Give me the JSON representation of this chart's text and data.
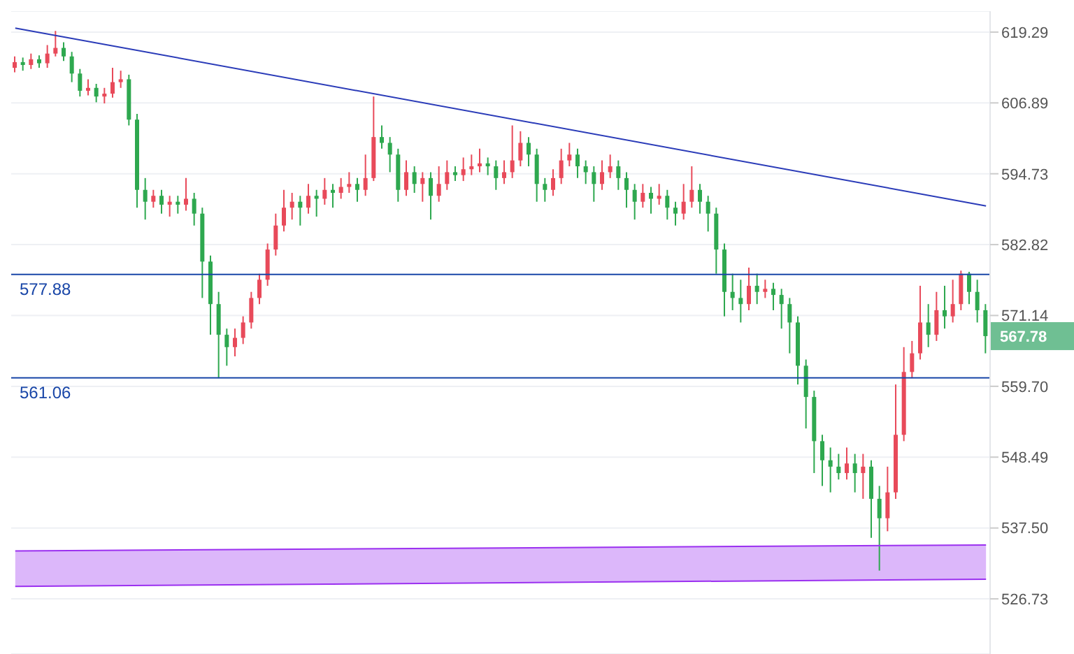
{
  "chart_data": {
    "type": "candlestick",
    "log": true,
    "grid": "y",
    "tick_labels": "y",
    "colors": [
      "#e84a5a",
      "#2ea84f",
      "#e84a5a",
      "#2ea84f",
      "#e84a5a",
      "#e84a5a",
      "#2ea84f",
      "#2ea84f",
      "#2ea84f",
      "#e84a5a",
      "#2ea84f",
      "#e84a5a",
      "#e84a5a",
      "#e84a5a",
      "#2ea84f",
      "#2ea84f",
      "#2ea84f",
      "#e84a5a",
      "#2ea84f",
      "#e84a5a",
      "#2ea84f",
      "#e84a5a",
      "#2ea84f",
      "#2ea84f",
      "#2ea84f",
      "#2ea84f",
      "#2ea84f",
      "#e84a5a",
      "#e84a5a",
      "#e84a5a",
      "#e84a5a",
      "#e84a5a",
      "#e84a5a",
      "#e84a5a",
      "#e84a5a",
      "#2ea84f",
      "#e84a5a",
      "#2ea84f",
      "#e84a5a",
      "#2ea84f",
      "#e84a5a",
      "#e84a5a",
      "#2ea84f",
      "#e84a5a",
      "#e84a5a",
      "#2ea84f",
      "#2ea84f",
      "#2ea84f",
      "#e84a5a",
      "#2ea84f",
      "#e84a5a",
      "#2ea84f",
      "#e84a5a",
      "#e84a5a",
      "#2ea84f",
      "#e84a5a",
      "#e84a5a",
      "#e84a5a",
      "#2ea84f",
      "#2ea84f",
      "#e84a5a",
      "#e84a5a",
      "#e84a5a",
      "#2ea84f",
      "#2ea84f",
      "#2ea84f",
      "#e84a5a",
      "#e84a5a",
      "#e84a5a",
      "#2ea84f",
      "#2ea84f",
      "#2ea84f",
      "#e84a5a",
      "#e84a5a",
      "#2ea84f",
      "#2ea84f",
      "#2ea84f",
      "#e84a5a",
      "#2ea84f",
      "#e84a5a",
      "#2ea84f",
      "#2ea84f",
      "#e84a5a",
      "#e84a5a",
      "#2ea84f",
      "#2ea84f",
      "#2ea84f",
      "#2ea84f",
      "#2ea84f",
      "#2ea84f",
      "#e84a5a",
      "#2ea84f",
      "#e84a5a",
      "#2ea84f",
      "#2ea84f",
      "#2ea84f",
      "#2ea84f",
      "#2ea84f",
      "#2ea84f",
      "#2ea84f",
      "#2ea84f",
      "#2ea84f",
      "#e84a5a",
      "#2ea84f",
      "#e84a5a",
      "#2ea84f",
      "#2ea84f",
      "#e84a5a",
      "#e84a5a",
      "#e84a5a",
      "#e84a5a",
      "#e84a5a",
      "#2ea84f",
      "#e84a5a",
      "#2ea84f",
      "#e84a5a",
      "#e84a5a",
      "#2ea84f",
      "#2ea84f",
      "#2ea84f"
    ],
    "ylim": [
      518.5,
      623
    ],
    "yticks": [
      {
        "value": 526.73,
        "label": "526.73"
      },
      {
        "value": 537.5,
        "label": "537.50"
      },
      {
        "value": 548.49,
        "label": "548.49"
      },
      {
        "value": 559.7,
        "label": "559.70"
      },
      {
        "value": 571.14,
        "label": "571.14"
      },
      {
        "value": 582.82,
        "label": "582.82"
      },
      {
        "value": 594.73,
        "label": "594.73"
      },
      {
        "value": 606.89,
        "label": "606.89"
      },
      {
        "value": 619.29,
        "label": "619.29"
      }
    ],
    "categories": [
      null,
      null,
      null,
      null,
      null,
      null,
      null,
      null,
      null,
      null,
      null,
      null,
      null,
      null,
      null,
      null,
      null,
      null,
      null,
      null,
      null,
      null,
      null,
      null,
      null,
      null,
      null,
      null,
      null,
      null,
      null,
      null,
      null,
      null,
      null,
      null,
      null,
      null,
      null,
      null,
      null,
      null,
      null,
      null,
      null,
      null,
      null,
      null,
      null,
      null,
      null,
      null,
      null,
      null,
      null,
      null,
      null,
      null,
      null,
      null,
      null,
      null,
      null,
      null,
      null,
      null,
      null,
      null,
      null,
      null,
      null,
      null,
      null,
      null,
      null,
      null,
      null,
      null,
      null,
      null,
      null,
      null,
      null,
      null,
      null,
      null,
      null,
      null,
      null,
      null,
      null,
      null,
      null,
      null,
      null,
      null,
      null,
      null,
      null,
      null,
      null,
      null,
      null,
      null,
      null,
      null,
      null,
      null,
      null,
      null,
      null,
      null,
      null,
      null,
      null,
      null,
      null,
      null,
      null,
      null
    ],
    "ohlc": [
      [
        613,
        615,
        612.2,
        614
      ],
      [
        614,
        614.8,
        612.5,
        613.5
      ],
      [
        613.5,
        615.5,
        612.8,
        614.5
      ],
      [
        614.5,
        615.2,
        613,
        613.8
      ],
      [
        613.8,
        617,
        613,
        615.5
      ],
      [
        615.5,
        619.5,
        615,
        616.5
      ],
      [
        616.5,
        617.5,
        614.2,
        615
      ],
      [
        615,
        615.8,
        610.5,
        612
      ],
      [
        612,
        612.8,
        608,
        609
      ],
      [
        609,
        611,
        608.2,
        609.5
      ],
      [
        609.5,
        610.2,
        607,
        608
      ],
      [
        608,
        609.5,
        606.8,
        608.5
      ],
      [
        608.5,
        613,
        607.8,
        610.5
      ],
      [
        610.5,
        612.5,
        609.5,
        611
      ],
      [
        611,
        611.8,
        603,
        604
      ],
      [
        604,
        605,
        589,
        592
      ],
      [
        592,
        594,
        587,
        590
      ],
      [
        590,
        592,
        589,
        591
      ],
      [
        591,
        592,
        588,
        589.5
      ],
      [
        589.5,
        591,
        587.5,
        590
      ],
      [
        590,
        591,
        588,
        589.5
      ],
      [
        589.5,
        594,
        588.5,
        590.5
      ],
      [
        590.5,
        591.5,
        586,
        588
      ],
      [
        588,
        589,
        574,
        580
      ],
      [
        580,
        581,
        568,
        573
      ],
      [
        573,
        575,
        561,
        568
      ],
      [
        568,
        569,
        563,
        566
      ],
      [
        566,
        569,
        564.5,
        567.5
      ],
      [
        567.5,
        571,
        566.5,
        570
      ],
      [
        570,
        575,
        569,
        574
      ],
      [
        574,
        578,
        573,
        577
      ],
      [
        577,
        583,
        576,
        582
      ],
      [
        582,
        588,
        581,
        586
      ],
      [
        586,
        592,
        585,
        589
      ],
      [
        589,
        591.5,
        587,
        590
      ],
      [
        590,
        591,
        586,
        589
      ],
      [
        589,
        593,
        588,
        591
      ],
      [
        591,
        592,
        587.5,
        590.5
      ],
      [
        590.5,
        594,
        589.5,
        592
      ],
      [
        592,
        593,
        589,
        591.5
      ],
      [
        591.5,
        594,
        590.5,
        592.5
      ],
      [
        592.5,
        595,
        591.5,
        593
      ],
      [
        593,
        594,
        590,
        592
      ],
      [
        592,
        598,
        591,
        594
      ],
      [
        594,
        608,
        593.5,
        601
      ],
      [
        601,
        603,
        599,
        600
      ],
      [
        600,
        601,
        595,
        598
      ],
      [
        598,
        599,
        590,
        592
      ],
      [
        592,
        597,
        591,
        595
      ],
      [
        595,
        596,
        591.5,
        593
      ],
      [
        593,
        595,
        590,
        594
      ],
      [
        594,
        595,
        587,
        591
      ],
      [
        591,
        596,
        590,
        593
      ],
      [
        593,
        597,
        592,
        595
      ],
      [
        595,
        596,
        593.5,
        594.5
      ],
      [
        594.5,
        597.5,
        593.5,
        595.5
      ],
      [
        595.5,
        598,
        594.5,
        596
      ],
      [
        596,
        599,
        595,
        596.5
      ],
      [
        596.5,
        597.5,
        594.5,
        596
      ],
      [
        596,
        597,
        592,
        594
      ],
      [
        594,
        597,
        593,
        595
      ],
      [
        595,
        603,
        594,
        597
      ],
      [
        597,
        602,
        596,
        600
      ],
      [
        600,
        601,
        596,
        598
      ],
      [
        598,
        599,
        590,
        593
      ],
      [
        593,
        594,
        590,
        592
      ],
      [
        592,
        595.5,
        591,
        594
      ],
      [
        594,
        599,
        593,
        597
      ],
      [
        597,
        600,
        596,
        598
      ],
      [
        598,
        599,
        594,
        596
      ],
      [
        596,
        597,
        593,
        595
      ],
      [
        595,
        596,
        590,
        593
      ],
      [
        593,
        597,
        592,
        595
      ],
      [
        595,
        598,
        594,
        596
      ],
      [
        596,
        597,
        592,
        594
      ],
      [
        594,
        595,
        589,
        592
      ],
      [
        592,
        593,
        587,
        590
      ],
      [
        590,
        593,
        589,
        591.5
      ],
      [
        591.5,
        592.5,
        588,
        590.5
      ],
      [
        590.5,
        593,
        589.5,
        591
      ],
      [
        591,
        592,
        587,
        589
      ],
      [
        589,
        590,
        586,
        588
      ],
      [
        588,
        593,
        587,
        590
      ],
      [
        590,
        596,
        589,
        592
      ],
      [
        592,
        593,
        588,
        590
      ],
      [
        590,
        591,
        585,
        588
      ],
      [
        588,
        589,
        578,
        582
      ],
      [
        582,
        583,
        571,
        575
      ],
      [
        575,
        578,
        572,
        574
      ],
      [
        574,
        577,
        570,
        573
      ],
      [
        573,
        579,
        572,
        576
      ],
      [
        576,
        578,
        573,
        575
      ],
      [
        575,
        577,
        574,
        575.5
      ],
      [
        575.5,
        576.5,
        572,
        574.5
      ],
      [
        574.5,
        575.5,
        569,
        573
      ],
      [
        573,
        574,
        565,
        570
      ],
      [
        570,
        571,
        560,
        563
      ],
      [
        563,
        564,
        553,
        558
      ],
      [
        558,
        559,
        546,
        551
      ],
      [
        551,
        552,
        544,
        548
      ],
      [
        548,
        550,
        543,
        547
      ],
      [
        547,
        549,
        545,
        546
      ],
      [
        546,
        550,
        545,
        547.5
      ],
      [
        547.5,
        549,
        543,
        546
      ],
      [
        546,
        549,
        542,
        547
      ],
      [
        547,
        548,
        536,
        542
      ],
      [
        542,
        544,
        531,
        539
      ],
      [
        539,
        547,
        537,
        543
      ],
      [
        543,
        560,
        542,
        552
      ],
      [
        552,
        566,
        551,
        562
      ],
      [
        562,
        567,
        561,
        565
      ],
      [
        565,
        576,
        564,
        570
      ],
      [
        570,
        573,
        566,
        568
      ],
      [
        568,
        575,
        567,
        572
      ],
      [
        572,
        576,
        569,
        571
      ],
      [
        571,
        577,
        570,
        573
      ],
      [
        573,
        578.5,
        572,
        578
      ],
      [
        578,
        578.3,
        573,
        575
      ],
      [
        575,
        577,
        570,
        572
      ],
      [
        572,
        573,
        565,
        567.78
      ]
    ],
    "series": [
      {
        "type": "line",
        "color": "#9b30f0",
        "values": [
          534.0,
          null,
          null,
          null,
          null,
          null,
          null,
          null,
          null,
          null,
          null,
          null,
          null,
          null,
          null,
          null,
          null,
          null,
          null,
          null,
          null,
          null,
          null,
          null,
          null,
          null,
          null,
          null,
          null,
          null,
          null,
          null,
          null,
          null,
          null,
          null,
          null,
          null,
          null,
          null,
          null,
          null,
          null,
          null,
          null,
          null,
          null,
          null,
          null,
          null,
          null,
          null,
          null,
          null,
          null,
          null,
          null,
          null,
          null,
          null,
          null,
          null,
          null,
          null,
          null,
          null,
          null,
          null,
          null,
          null,
          null,
          null,
          null,
          null,
          null,
          null,
          null,
          null,
          null,
          null,
          null,
          null,
          null,
          null,
          null,
          null,
          null,
          null,
          null,
          null,
          null,
          null,
          null,
          null,
          null,
          null,
          null,
          null,
          null,
          null,
          null,
          null,
          null,
          null,
          null,
          null,
          null,
          null,
          null,
          null,
          null,
          null,
          null,
          null,
          null,
          null,
          null,
          null,
          null,
          534.9
        ]
      },
      {
        "type": "line",
        "color": "#9b30f0",
        "values": [
          528.6,
          null,
          null,
          null,
          null,
          null,
          null,
          null,
          null,
          null,
          null,
          null,
          null,
          null,
          null,
          null,
          null,
          null,
          null,
          null,
          null,
          null,
          null,
          null,
          null,
          null,
          null,
          null,
          null,
          null,
          null,
          null,
          null,
          null,
          null,
          null,
          null,
          null,
          null,
          null,
          null,
          null,
          null,
          null,
          null,
          null,
          null,
          null,
          null,
          null,
          null,
          null,
          null,
          null,
          null,
          null,
          null,
          null,
          null,
          null,
          null,
          null,
          null,
          null,
          null,
          null,
          null,
          null,
          null,
          null,
          null,
          null,
          null,
          null,
          null,
          null,
          null,
          null,
          null,
          null,
          null,
          null,
          null,
          null,
          null,
          null,
          null,
          null,
          null,
          null,
          null,
          null,
          null,
          null,
          null,
          null,
          null,
          null,
          null,
          null,
          null,
          null,
          null,
          null,
          null,
          null,
          null,
          null,
          null,
          null,
          null,
          null,
          null,
          null,
          null,
          null,
          null,
          null,
          null,
          529.7
        ]
      },
      {
        "type": "line",
        "color": "#2a3bb8",
        "values": [
          620.0,
          null,
          null,
          null,
          null,
          null,
          null,
          null,
          null,
          null,
          null,
          null,
          null,
          null,
          null,
          null,
          null,
          null,
          null,
          null,
          null,
          null,
          null,
          null,
          null,
          null,
          null,
          null,
          null,
          null,
          null,
          null,
          null,
          null,
          null,
          null,
          null,
          null,
          null,
          null,
          null,
          null,
          null,
          null,
          null,
          null,
          null,
          null,
          null,
          null,
          null,
          null,
          null,
          null,
          null,
          null,
          null,
          null,
          null,
          null,
          null,
          null,
          null,
          null,
          null,
          null,
          null,
          null,
          null,
          null,
          null,
          null,
          null,
          null,
          null,
          null,
          null,
          null,
          null,
          null,
          null,
          null,
          null,
          null,
          null,
          null,
          null,
          null,
          null,
          null,
          null,
          null,
          null,
          null,
          null,
          null,
          null,
          null,
          null,
          null,
          null,
          null,
          null,
          null,
          null,
          null,
          null,
          null,
          null,
          null,
          null,
          null,
          null,
          null,
          null,
          null,
          null,
          null,
          null,
          589.3
        ]
      }
    ],
    "ref_lines": [
      {
        "axis": "y",
        "value": 577.88,
        "label": "577.88",
        "color": "#1a47a8"
      },
      {
        "axis": "y",
        "value": 561.06,
        "label": "561.06",
        "color": "#1a47a8"
      }
    ],
    "annotations": [
      "567.78"
    ]
  }
}
